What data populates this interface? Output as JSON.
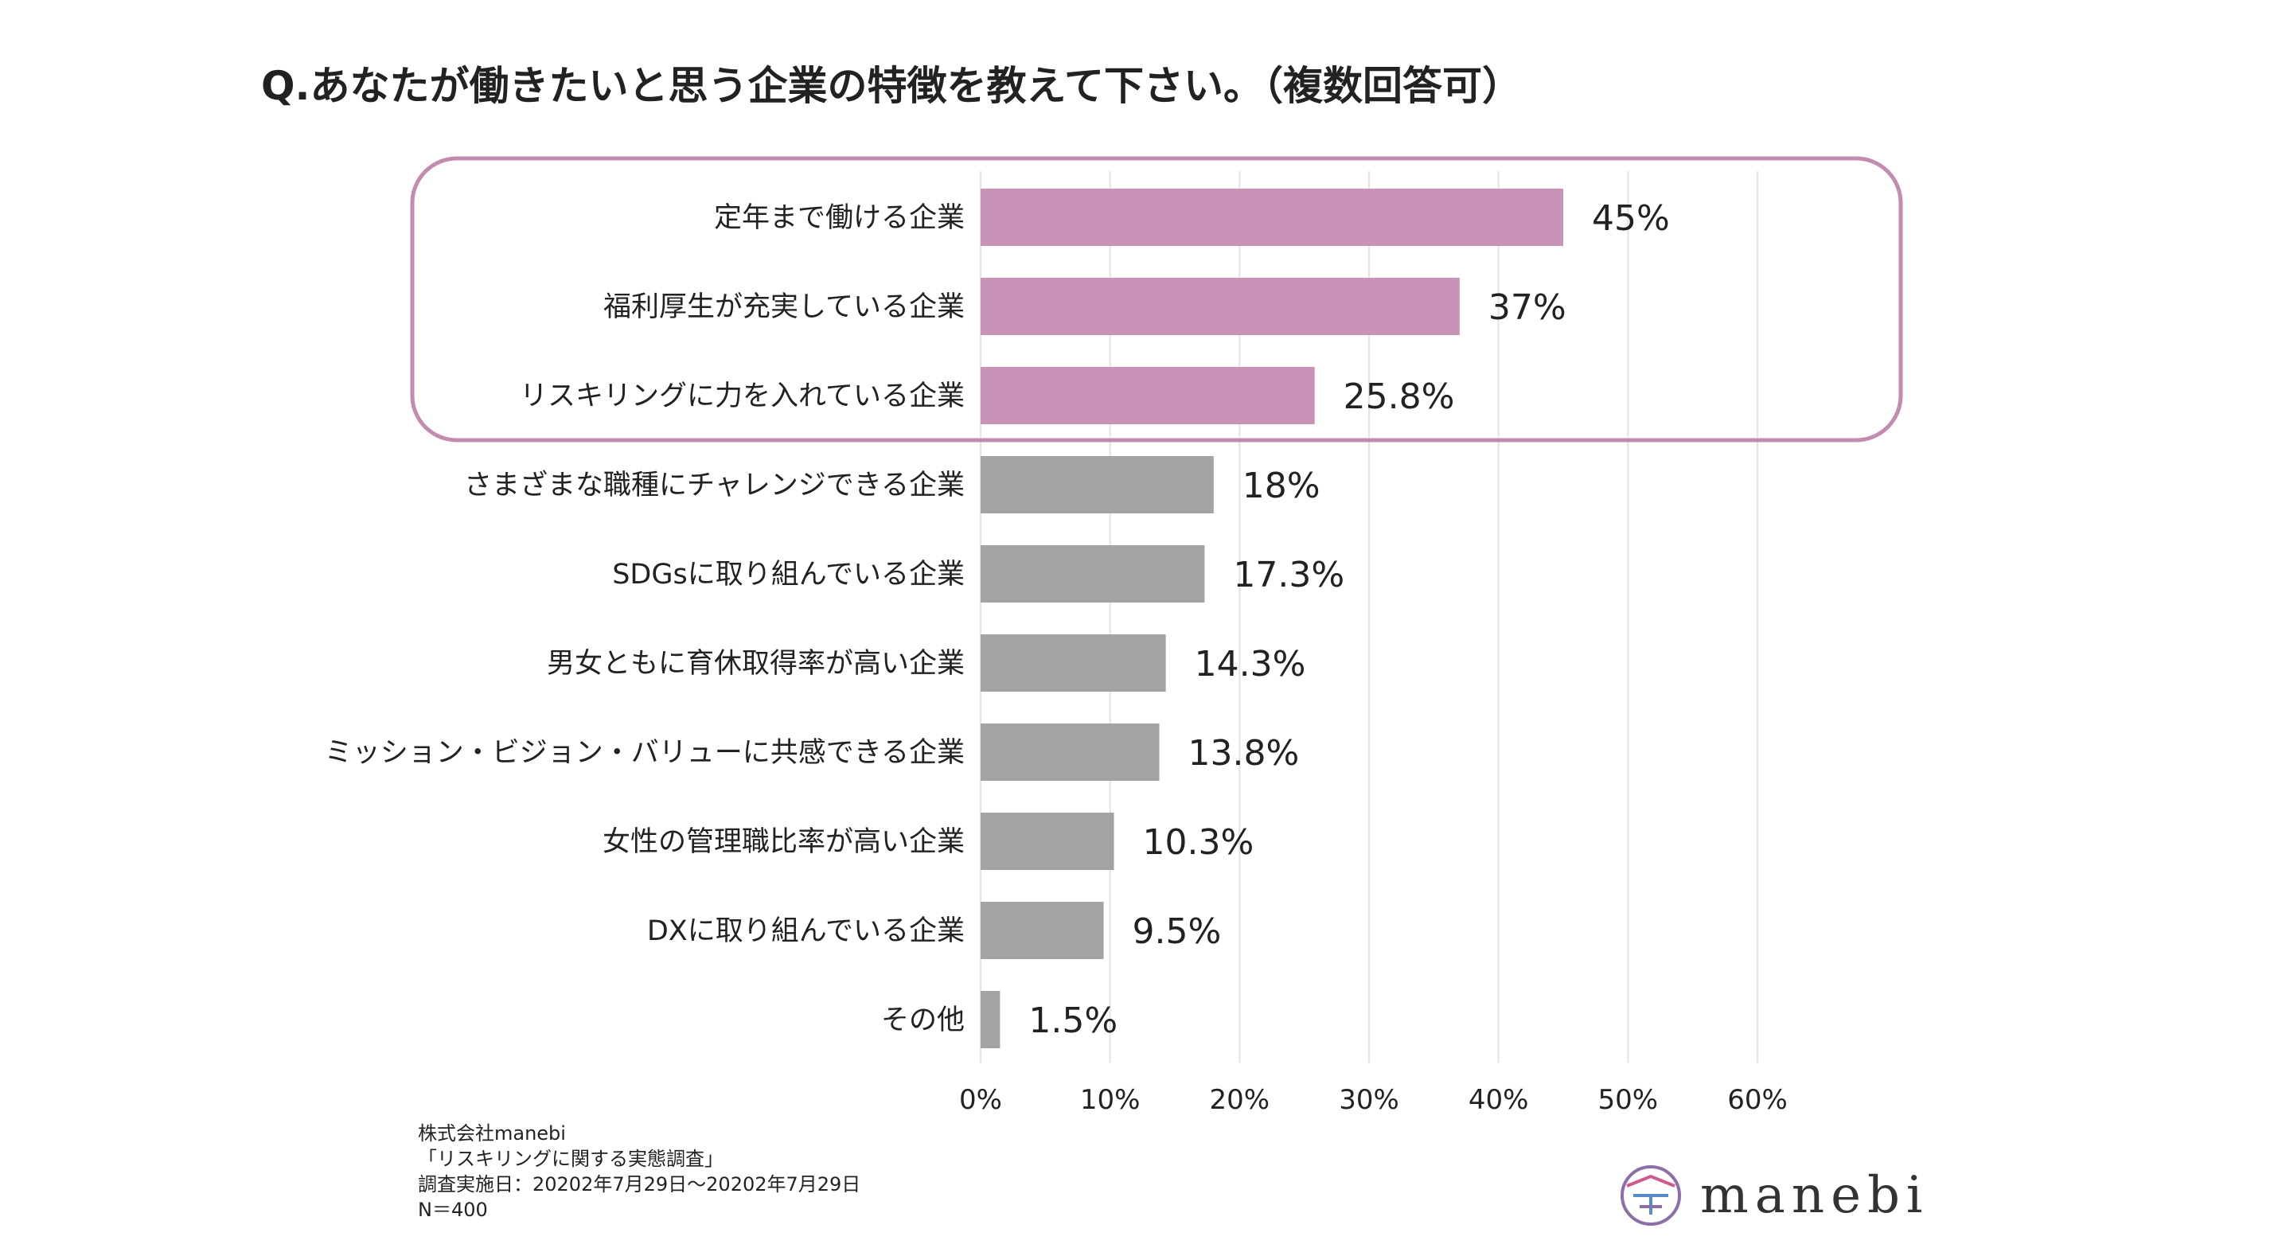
{
  "chart_data": {
    "type": "bar",
    "orientation": "horizontal",
    "title": "Q.あなたが働きたいと思う企業の特徴を教えて下さい。（複数回答可）",
    "categories": [
      "定年まで働ける企業",
      "福利厚生が充実している企業",
      "リスキリングに力を入れている企業",
      "さまざまな職種にチャレンジできる企業",
      "SDGsに取り組んでいる企業",
      "男女ともに育休取得率が高い企業",
      "ミッション・ビジョン・バリューに共感できる企業",
      "女性の管理職比率が高い企業",
      "DXに取り組んでいる企業",
      "その他"
    ],
    "values": [
      45,
      37,
      25.8,
      18,
      17.3,
      14.3,
      13.8,
      10.3,
      9.5,
      1.5
    ],
    "value_labels": [
      "45%",
      "37%",
      "25.8%",
      "18%",
      "17.3%",
      "14.3%",
      "13.8%",
      "10.3%",
      "9.5%",
      "1.5%"
    ],
    "highlighted": [
      true,
      true,
      true,
      false,
      false,
      false,
      false,
      false,
      false,
      false
    ],
    "xlim": [
      0,
      60
    ],
    "xticks": [
      "0%",
      "10%",
      "20%",
      "30%",
      "40%",
      "50%",
      "60%"
    ],
    "grid": true,
    "xlabel": "",
    "ylabel": ""
  },
  "colors": {
    "highlight": "#c993b7",
    "default": "#a3a3a3",
    "frame": "#c38bb0",
    "grid": "#e3e3e3"
  },
  "footer": {
    "company": "株式会社manebi",
    "survey": "「リスキリングに関する実態調査」",
    "date": "調査実施日：20202年7月29日〜20202年7月29日",
    "n": "N＝400"
  },
  "logo": {
    "text": "manebi",
    "icon": "manebi-logo-icon"
  }
}
